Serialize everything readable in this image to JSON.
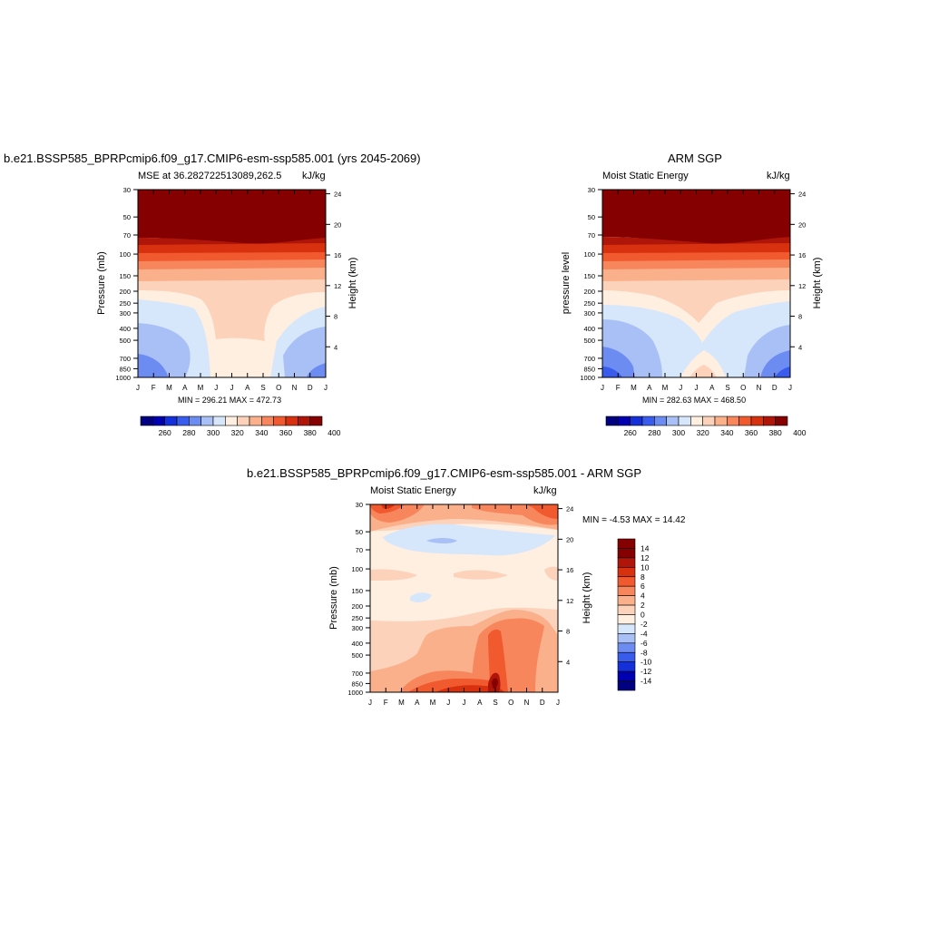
{
  "chart_data": [
    {
      "type": "contour",
      "title": "b.e21.BSSP585_BPRPcmip6.f09_g17.CMIP6-esm-ssp585.001 (yrs 2045-2069)",
      "left_subtitle": "MSE at 36.282722513089,262.5",
      "right_subtitle": "kJ/kg",
      "ylabel": "Pressure (mb)",
      "ylabel_right": "Height (km)",
      "minmax": "MIN = 296.21 MAX = 472.73",
      "colorbar_labels": [
        "260",
        "280",
        "300",
        "320",
        "340",
        "360",
        "380",
        "400"
      ]
    },
    {
      "type": "contour",
      "title": "ARM SGP",
      "left_subtitle": "Moist Static Energy",
      "right_subtitle": "kJ/kg",
      "ylabel": "pressure level",
      "ylabel_right": "Height (km)",
      "minmax": "MIN = 282.63 MAX = 468.50",
      "colorbar_labels": [
        "260",
        "280",
        "300",
        "320",
        "340",
        "360",
        "380",
        "400"
      ]
    },
    {
      "type": "contour",
      "title": "b.e21.BSSP585_BPRPcmip6.f09_g17.CMIP6-esm-ssp585.001 - ARM SGP",
      "left_subtitle": "Moist Static Energy",
      "right_subtitle": "kJ/kg",
      "ylabel": "Pressure (mb)",
      "ylabel_right": "Height (km)",
      "minmax": "MIN =  -4.53 MAX =  14.42",
      "colorbar_labels": [
        "14",
        "12",
        "10",
        "8",
        "6",
        "4",
        "2",
        "0",
        "-2",
        "-4",
        "-6",
        "-8",
        "-10",
        "-12",
        "-14"
      ]
    }
  ],
  "axes": {
    "months": [
      "J",
      "F",
      "M",
      "A",
      "M",
      "J",
      "J",
      "A",
      "S",
      "O",
      "N",
      "D",
      "J"
    ],
    "pressure_ticks": [
      "30",
      "50",
      "70",
      "100",
      "150",
      "200",
      "250",
      "300",
      "400",
      "500",
      "700",
      "850",
      "1000"
    ],
    "pressure_values": [
      30,
      50,
      70,
      100,
      150,
      200,
      250,
      300,
      400,
      500,
      700,
      850,
      1000
    ],
    "height_ticks": [
      "24",
      "20",
      "16",
      "12",
      "8",
      "4"
    ],
    "height_values": [
      24,
      20,
      16,
      12,
      8,
      4
    ]
  },
  "colors": {
    "mse_palette": [
      "#000080",
      "#0000b0",
      "#1530d8",
      "#3a5cec",
      "#6d8cf2",
      "#a9c0f7",
      "#d6e6fb",
      "#feefe0",
      "#fdd2ba",
      "#fab08a",
      "#f7865c",
      "#f15a2e",
      "#d8310f",
      "#b0150a",
      "#850000"
    ],
    "diff_palette": [
      "#850000",
      "#b0150a",
      "#d8310f",
      "#f15a2e",
      "#f7865c",
      "#fab08a",
      "#fdd2ba",
      "#feefe0",
      "#d6e6fb",
      "#a9c0f7",
      "#6d8cf2",
      "#3a5cec",
      "#1530d8",
      "#0000b0",
      "#000080"
    ]
  }
}
